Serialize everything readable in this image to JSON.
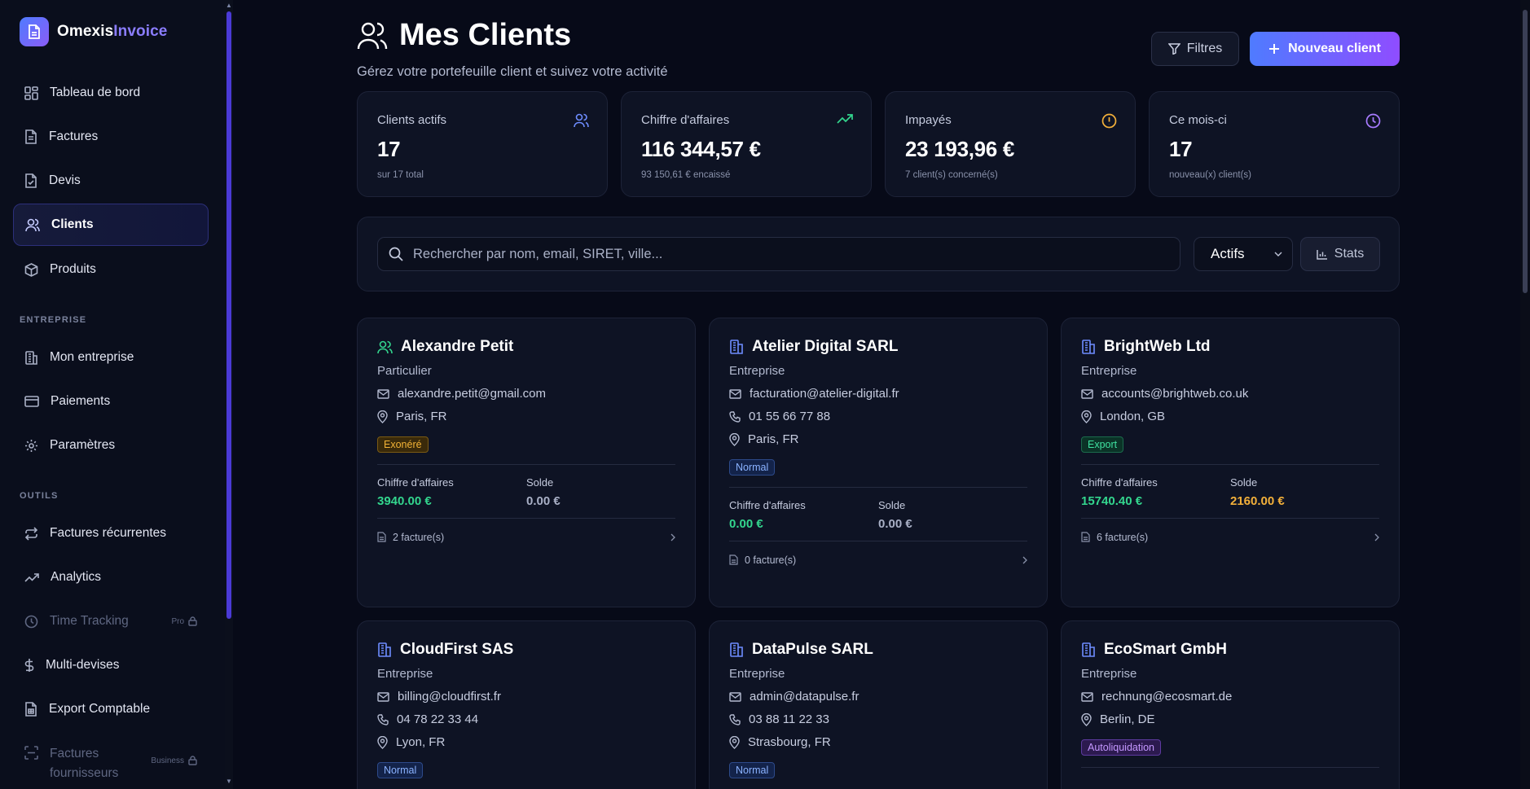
{
  "brand": {
    "name_part1": "Omexis",
    "name_part2": "Invoice"
  },
  "sidebar": {
    "main_items": [
      {
        "label": "Tableau de bord",
        "icon": "dashboard-icon"
      },
      {
        "label": "Factures",
        "icon": "file-text-icon"
      },
      {
        "label": "Devis",
        "icon": "file-check-icon"
      },
      {
        "label": "Clients",
        "icon": "users-icon",
        "active": true
      },
      {
        "label": "Produits",
        "icon": "package-icon"
      }
    ],
    "section_entreprise": "ENTREPRISE",
    "entreprise_items": [
      {
        "label": "Mon entreprise",
        "icon": "building-icon"
      },
      {
        "label": "Paiements",
        "icon": "credit-card-icon"
      },
      {
        "label": "Paramètres",
        "icon": "gear-icon"
      }
    ],
    "section_outils": "OUTILS",
    "outils_items": [
      {
        "label": "Factures récurrentes",
        "icon": "repeat-icon"
      },
      {
        "label": "Analytics",
        "icon": "trending-icon"
      },
      {
        "label": "Time Tracking",
        "icon": "clock-icon",
        "badge": "Pro",
        "locked": true
      },
      {
        "label": "Multi-devises",
        "icon": "dollar-icon"
      },
      {
        "label": "Export Comptable",
        "icon": "spreadsheet-icon"
      },
      {
        "label": "Factures fournisseurs",
        "label_line1": "Factures",
        "label_line2": "fournisseurs",
        "icon": "scan-icon",
        "badge": "Business",
        "locked": true
      }
    ]
  },
  "header": {
    "title": "Mes Clients",
    "subtitle": "Gérez votre portefeuille client et suivez votre activité",
    "filter_label": "Filtres",
    "new_label": "Nouveau client"
  },
  "stats": [
    {
      "label": "Clients actifs",
      "value": "17",
      "sub": "sur 17 total",
      "icon": "users-icon",
      "color": "#6e8dff"
    },
    {
      "label": "Chiffre d'affaires",
      "value": "116 344,57 €",
      "sub": "93 150,61 € encaissé",
      "icon": "trending-up-icon",
      "color": "#33d68e"
    },
    {
      "label": "Impayés",
      "value": "23 193,96 €",
      "sub": "7 client(s) concerné(s)",
      "icon": "alert-circle-icon",
      "color": "#f3b03a"
    },
    {
      "label": "Ce mois-ci",
      "value": "17",
      "sub": "nouveau(x) client(s)",
      "icon": "clock-icon",
      "color": "#a77bff"
    }
  ],
  "search": {
    "placeholder": "Rechercher par nom, email, SIRET, ville...",
    "status_selected": "Actifs",
    "stats_label": "Stats"
  },
  "cards": [
    {
      "name": "Alexandre Petit",
      "kind": "person",
      "type": "Particulier",
      "email": "alexandre.petit@gmail.com",
      "phone": null,
      "city": "Paris, FR",
      "tag": "Exonéré",
      "tag_style": "exo",
      "ca_label": "Chiffre d'affaires",
      "ca": "3940.00 €",
      "solde_label": "Solde",
      "solde": "0.00 €",
      "invoices": "2 facture(s)"
    },
    {
      "name": "Atelier Digital SARL",
      "kind": "company",
      "type": "Entreprise",
      "email": "facturation@atelier-digital.fr",
      "phone": "01 55 66 77 88",
      "city": "Paris, FR",
      "tag": "Normal",
      "tag_style": "normal",
      "ca_label": "Chiffre d'affaires",
      "ca": "0.00 €",
      "solde_label": "Solde",
      "solde": "0.00 €",
      "invoices": "0 facture(s)"
    },
    {
      "name": "BrightWeb Ltd",
      "kind": "company",
      "type": "Entreprise",
      "email": "accounts@brightweb.co.uk",
      "phone": null,
      "city": "London, GB",
      "tag": "Export",
      "tag_style": "export",
      "ca_label": "Chiffre d'affaires",
      "ca": "15740.40 €",
      "solde_label": "Solde",
      "solde": "2160.00 €",
      "invoices": "6 facture(s)"
    },
    {
      "name": "CloudFirst SAS",
      "kind": "company",
      "type": "Entreprise",
      "email": "billing@cloudfirst.fr",
      "phone": "04 78 22 33 44",
      "city": "Lyon, FR",
      "tag": "Normal",
      "tag_style": "normal"
    },
    {
      "name": "DataPulse SARL",
      "kind": "company",
      "type": "Entreprise",
      "email": "admin@datapulse.fr",
      "phone": "03 88 11 22 33",
      "city": "Strasbourg, FR",
      "tag": "Normal",
      "tag_style": "normal"
    },
    {
      "name": "EcoSmart GmbH",
      "kind": "company",
      "type": "Entreprise",
      "email": "rechnung@ecosmart.de",
      "phone": null,
      "city": "Berlin, DE",
      "tag": "Autoliquidation",
      "tag_style": "auto"
    }
  ]
}
